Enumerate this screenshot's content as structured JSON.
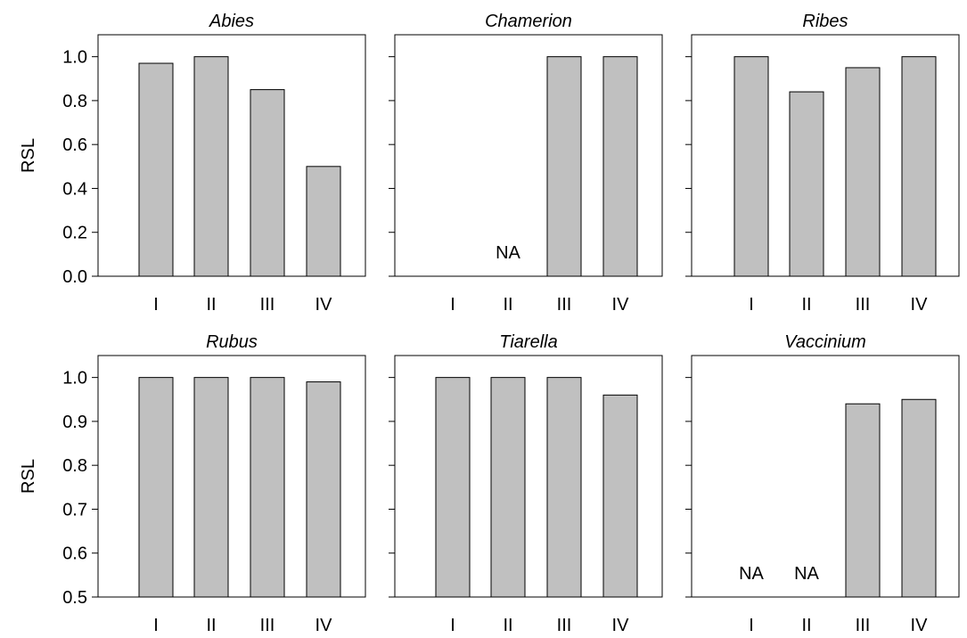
{
  "chart_data": [
    {
      "type": "bar",
      "title": "Abies",
      "ylabel": "RSL",
      "categories": [
        "I",
        "II",
        "III",
        "IV"
      ],
      "values": [
        0.97,
        1.0,
        0.85,
        0.5
      ],
      "na": [
        false,
        false,
        false,
        false
      ],
      "ylim": [
        0.0,
        1.1
      ],
      "yticks": [
        0.0,
        0.2,
        0.4,
        0.6,
        0.8,
        1.0
      ],
      "ytick_labels": [
        "0.0",
        "0.2",
        "0.4",
        "0.6",
        "0.8",
        "1.0"
      ],
      "show_ytick_labels": true,
      "bar_color": "#c0c0c0",
      "grid": false
    },
    {
      "type": "bar",
      "title": "Chamerion",
      "ylabel": "",
      "categories": [
        "I",
        "II",
        "III",
        "IV"
      ],
      "values": [
        null,
        null,
        1.0,
        1.0
      ],
      "na": [
        false,
        true,
        false,
        false
      ],
      "na_text": "NA",
      "ylim": [
        0.0,
        1.1
      ],
      "yticks": [
        0.0,
        0.2,
        0.4,
        0.6,
        0.8,
        1.0
      ],
      "ytick_labels": [],
      "show_ytick_labels": false,
      "bar_color": "#c0c0c0",
      "grid": false
    },
    {
      "type": "bar",
      "title": "Ribes",
      "ylabel": "",
      "categories": [
        "I",
        "II",
        "III",
        "IV"
      ],
      "values": [
        1.0,
        0.84,
        0.95,
        1.0
      ],
      "na": [
        false,
        false,
        false,
        false
      ],
      "ylim": [
        0.0,
        1.1
      ],
      "yticks": [
        0.0,
        0.2,
        0.4,
        0.6,
        0.8,
        1.0
      ],
      "ytick_labels": [],
      "show_ytick_labels": false,
      "bar_color": "#c0c0c0",
      "grid": false
    },
    {
      "type": "bar",
      "title": "Rubus",
      "ylabel": "RSL",
      "categories": [
        "I",
        "II",
        "III",
        "IV"
      ],
      "values": [
        1.0,
        1.0,
        1.0,
        0.99
      ],
      "na": [
        false,
        false,
        false,
        false
      ],
      "ylim": [
        0.5,
        1.05
      ],
      "yticks": [
        0.5,
        0.6,
        0.7,
        0.8,
        0.9,
        1.0
      ],
      "ytick_labels": [
        "0.5",
        "0.6",
        "0.7",
        "0.8",
        "0.9",
        "1.0"
      ],
      "show_ytick_labels": true,
      "bar_color": "#c0c0c0",
      "grid": false
    },
    {
      "type": "bar",
      "title": "Tiarella",
      "ylabel": "",
      "categories": [
        "I",
        "II",
        "III",
        "IV"
      ],
      "values": [
        1.0,
        1.0,
        1.0,
        0.96
      ],
      "na": [
        false,
        false,
        false,
        false
      ],
      "ylim": [
        0.5,
        1.05
      ],
      "yticks": [
        0.5,
        0.6,
        0.7,
        0.8,
        0.9,
        1.0
      ],
      "ytick_labels": [],
      "show_ytick_labels": false,
      "bar_color": "#c0c0c0",
      "grid": false
    },
    {
      "type": "bar",
      "title": "Vaccinium",
      "ylabel": "",
      "categories": [
        "I",
        "II",
        "III",
        "IV"
      ],
      "values": [
        null,
        null,
        0.94,
        0.95
      ],
      "na": [
        true,
        true,
        false,
        false
      ],
      "na_text": "NA",
      "ylim": [
        0.5,
        1.05
      ],
      "yticks": [
        0.5,
        0.6,
        0.7,
        0.8,
        0.9,
        1.0
      ],
      "ytick_labels": [],
      "show_ytick_labels": false,
      "bar_color": "#c0c0c0",
      "grid": false
    }
  ]
}
